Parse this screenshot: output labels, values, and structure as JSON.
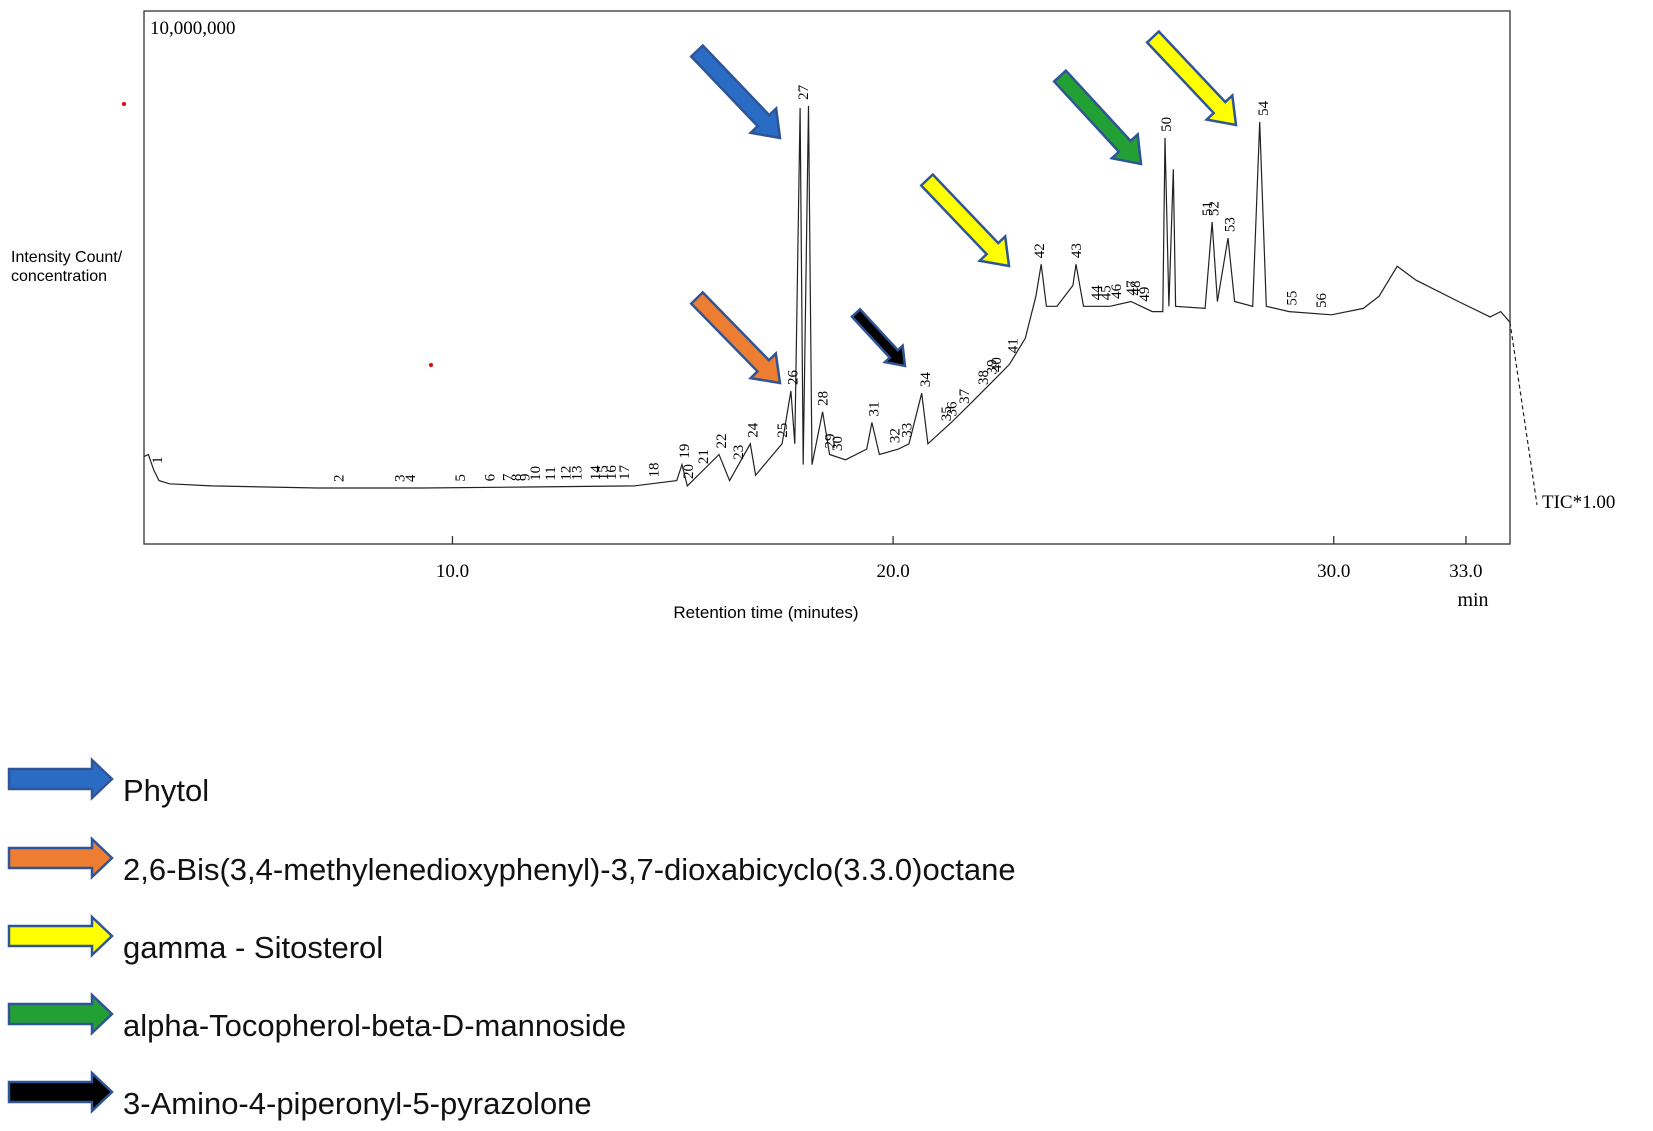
{
  "chart_data": {
    "type": "line",
    "color": "#222222",
    "y_label": [
      "Intensity Count/",
      "concentration"
    ],
    "x_label": "Retention time (minutes)",
    "x_unit": "min",
    "trace_label": "TIC*1.00",
    "xlim": [
      3.0,
      34.0
    ],
    "ylim": [
      0,
      10000000
    ],
    "xticks": [
      {
        "value": 10,
        "label": "10.0"
      },
      {
        "value": 20,
        "label": "20.0"
      },
      {
        "value": 30,
        "label": "30.0"
      },
      {
        "value": 33,
        "label": "33.0"
      }
    ],
    "yticks": [
      {
        "value": 10000000,
        "label": "10,000,000"
      }
    ],
    "x": [
      3.0,
      3.1,
      3.22,
      3.34,
      3.58,
      4.53,
      6.93,
      9.33,
      11.73,
      14.13,
      15.09,
      15.21,
      15.33,
      16.05,
      16.29,
      16.76,
      16.88,
      17.48,
      17.68,
      17.77,
      17.89,
      17.96,
      18.08,
      18.16,
      18.4,
      18.56,
      18.92,
      19.4,
      19.52,
      19.69,
      20.12,
      20.36,
      20.65,
      20.79,
      21.32,
      21.8,
      22.28,
      22.64,
      23.0,
      23.24,
      23.36,
      23.48,
      23.72,
      24.08,
      24.15,
      24.32,
      24.92,
      25.4,
      25.88,
      26.12,
      26.17,
      26.26,
      26.36,
      26.41,
      27.08,
      27.24,
      27.36,
      27.6,
      27.75,
      28.16,
      28.32,
      28.47,
      28.99,
      29.95,
      30.67,
      31.03,
      31.44,
      31.87,
      32.83,
      33.55,
      33.79,
      34.0
    ],
    "values": [
      1640000,
      1680000,
      1390000,
      1190000,
      1130000,
      1090000,
      1050000,
      1050000,
      1070000,
      1090000,
      1190000,
      1490000,
      1090000,
      1680000,
      1190000,
      1880000,
      1290000,
      1880000,
      2870000,
      1880000,
      8180000,
      1490000,
      8220000,
      1490000,
      2480000,
      1680000,
      1580000,
      1780000,
      2280000,
      1680000,
      1780000,
      1880000,
      2830000,
      1880000,
      2280000,
      2670000,
      3070000,
      3370000,
      3860000,
      4650000,
      5250000,
      4460000,
      4460000,
      4850000,
      5250000,
      4460000,
      4460000,
      4550000,
      4360000,
      4360000,
      7620000,
      4460000,
      7030000,
      4460000,
      4420000,
      6040000,
      4550000,
      5740000,
      4550000,
      4460000,
      7920000,
      4460000,
      4360000,
      4300000,
      4420000,
      4650000,
      5210000,
      4950000,
      4550000,
      4260000,
      4360000,
      4160000
    ],
    "peak_labels": [
      {
        "label": "1",
        "x": 3.29
      },
      {
        "label": "2",
        "x": 7.41
      },
      {
        "label": "3",
        "x": 8.8
      },
      {
        "label": "4",
        "x": 9.04
      },
      {
        "label": "5",
        "x": 10.17
      },
      {
        "label": "6",
        "x": 10.84
      },
      {
        "label": "7",
        "x": 11.25
      },
      {
        "label": "8",
        "x": 11.44
      },
      {
        "label": "9",
        "x": 11.63
      },
      {
        "label": "10",
        "x": 11.87
      },
      {
        "label": "11",
        "x": 12.21
      },
      {
        "label": "12",
        "x": 12.57
      },
      {
        "label": "13",
        "x": 12.81
      },
      {
        "label": "14",
        "x": 13.24
      },
      {
        "label": "15",
        "x": 13.41
      },
      {
        "label": "16",
        "x": 13.6
      },
      {
        "label": "17",
        "x": 13.89
      },
      {
        "label": "18",
        "x": 14.56
      },
      {
        "label": "19",
        "x": 15.25
      },
      {
        "label": "20",
        "x": 15.35
      },
      {
        "label": "21",
        "x": 15.69
      },
      {
        "label": "22",
        "x": 16.09
      },
      {
        "label": "23",
        "x": 16.48
      },
      {
        "label": "24",
        "x": 16.81
      },
      {
        "label": "25",
        "x": 17.48
      },
      {
        "label": "26",
        "x": 17.72
      },
      {
        "label": "27",
        "x": 17.96
      },
      {
        "label": "28",
        "x": 18.4
      },
      {
        "label": "29",
        "x": 18.56
      },
      {
        "label": "30",
        "x": 18.73
      },
      {
        "label": "31",
        "x": 19.55
      },
      {
        "label": "32",
        "x": 20.03
      },
      {
        "label": "33",
        "x": 20.31
      },
      {
        "label": "34",
        "x": 20.72
      },
      {
        "label": "35",
        "x": 21.2
      },
      {
        "label": "36",
        "x": 21.32
      },
      {
        "label": "37",
        "x": 21.61
      },
      {
        "label": "38",
        "x": 22.04
      },
      {
        "label": "39",
        "x": 22.23
      },
      {
        "label": "40",
        "x": 22.33
      },
      {
        "label": "41",
        "x": 22.71
      },
      {
        "label": "42",
        "x": 23.31
      },
      {
        "label": "43",
        "x": 24.15
      },
      {
        "label": "44",
        "x": 24.61
      },
      {
        "label": "45",
        "x": 24.82
      },
      {
        "label": "46",
        "x": 25.06
      },
      {
        "label": "47",
        "x": 25.4
      },
      {
        "label": "48",
        "x": 25.49
      },
      {
        "label": "49",
        "x": 25.69
      },
      {
        "label": "50",
        "x": 26.19
      },
      {
        "label": "51",
        "x": 27.12
      },
      {
        "label": "52",
        "x": 27.27
      },
      {
        "label": "53",
        "x": 27.63
      },
      {
        "label": "54",
        "x": 28.4
      },
      {
        "label": "55",
        "x": 29.04
      },
      {
        "label": "56",
        "x": 29.71
      }
    ],
    "legend": [
      {
        "name": "Phytol",
        "color": "#2a6bc4"
      },
      {
        "name": "2,6-Bis(3,4-methylenedioxyphenyl)-3,7-dioxabicyclo(3.3.0)octane",
        "color": "#ed7d31"
      },
      {
        "name": "gamma - Sitosterol",
        "color": "#ffff00"
      },
      {
        "name": "alpha-Tocopherol-beta-D-mannoside",
        "color": "#22a033"
      },
      {
        "name": "3-Amino-4-piperonyl-5-pyrazolone",
        "color": "#000000"
      }
    ]
  }
}
